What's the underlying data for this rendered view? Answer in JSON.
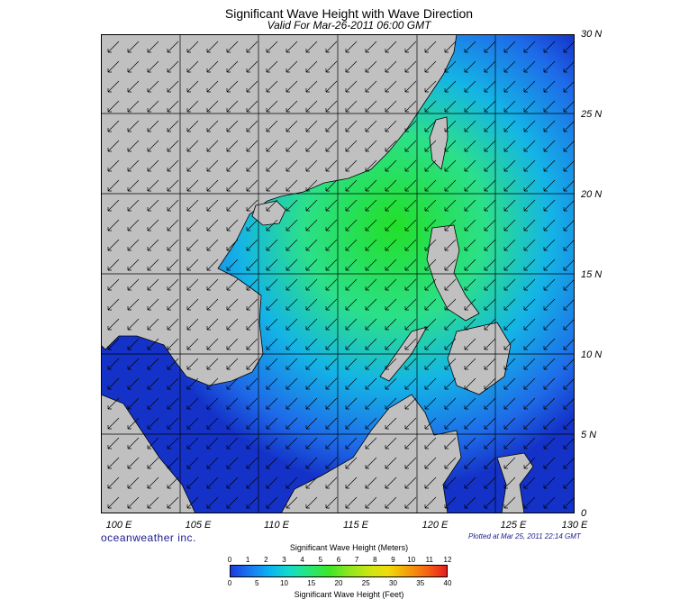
{
  "title": "Significant Wave Height with Wave Direction",
  "subtitle": "Valid For Mar-26-2011 06:00 GMT",
  "lat_labels": [
    "30 N",
    "25 N",
    "20 N",
    "15 N",
    "10 N",
    "5 N",
    "0"
  ],
  "lon_labels": [
    "100 E",
    "105 E",
    "110 E",
    "115 E",
    "120 E",
    "125 E",
    "130 E"
  ],
  "brand": "oceanweather inc.",
  "plotted_note": "Plotted at Mar 25, 2011 22:14 GMT",
  "colorbar": {
    "meters_title": "Significant Wave Height (Meters)",
    "feet_title": "Significant Wave Height (Feet)",
    "meters_ticks": [
      "0",
      "1",
      "2",
      "3",
      "4",
      "5",
      "6",
      "7",
      "8",
      "9",
      "10",
      "11",
      "12"
    ],
    "feet_ticks": [
      "0",
      "5",
      "10",
      "15",
      "20",
      "25",
      "30",
      "35",
      "40"
    ],
    "colors": [
      "#1a3ce0",
      "#1a78f0",
      "#0ab4f0",
      "#14dcc8",
      "#28e678",
      "#3ce628",
      "#8ce61e",
      "#c8e614",
      "#f0dc0a",
      "#f5a00a",
      "#f56414",
      "#e61e1e"
    ]
  },
  "colors": {
    "land": "#c0c0c0",
    "ocean_deep": "#1432c8",
    "ocean_mid": "#1e8cf0",
    "ocean_peak": "#22e028",
    "arrows": "#000000"
  },
  "wave_direction": "northeast to southwest"
}
